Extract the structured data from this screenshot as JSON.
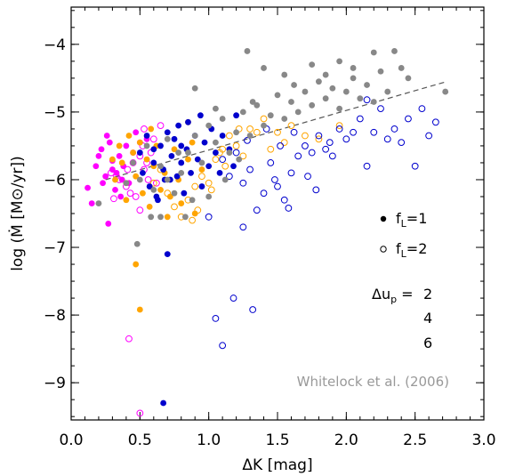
{
  "chart_data": {
    "type": "scatter",
    "xlabel": "ΔK  [mag]",
    "ylabel": "log (Ṁ [M⊙/yr])",
    "xlim": [
      0.0,
      3.0
    ],
    "ylim": [
      -9.55,
      -3.45
    ],
    "x_ticks": [
      0.0,
      0.5,
      1.0,
      1.5,
      2.0,
      2.5,
      3.0
    ],
    "x_tick_labels": [
      "0.0",
      "0.5",
      "1.0",
      "1.5",
      "2.0",
      "2.5",
      "3.0"
    ],
    "y_ticks": [
      -9,
      -8,
      -7,
      -6,
      -5,
      -4
    ],
    "y_tick_labels": [
      "−9",
      "−8",
      "−7",
      "−6",
      "−5",
      "−4"
    ],
    "credit": "Whitelock et al. (2006)",
    "legend": {
      "filled_label": "f",
      "filled_sub": "L",
      "filled_value": "=1",
      "open_label": "f",
      "open_sub": "L",
      "open_value": "=2",
      "du_label": "Δu",
      "du_sub": "p",
      "du_eq": " =",
      "du_values": [
        "2",
        "4",
        "6"
      ]
    },
    "colors": {
      "pink": "#ff00ff",
      "orange": "#ffa500",
      "blue": "#0000cd",
      "gray": "#888888",
      "fit": "#555555"
    },
    "fit_line": {
      "x": [
        0.25,
        2.73
      ],
      "y": [
        -6.0,
        -4.55
      ]
    },
    "series": [
      {
        "color": "pink",
        "filled": true,
        "points": [
          [
            0.12,
            -6.12
          ],
          [
            0.15,
            -6.35
          ],
          [
            0.18,
            -5.8
          ],
          [
            0.2,
            -5.65
          ],
          [
            0.22,
            -5.55
          ],
          [
            0.23,
            -6.05
          ],
          [
            0.25,
            -5.95
          ],
          [
            0.27,
            -6.65
          ],
          [
            0.28,
            -5.45
          ],
          [
            0.3,
            -5.85
          ],
          [
            0.3,
            -5.72
          ],
          [
            0.32,
            -6.15
          ],
          [
            0.33,
            -5.9
          ],
          [
            0.35,
            -5.65
          ],
          [
            0.36,
            -6.25
          ],
          [
            0.38,
            -5.8
          ],
          [
            0.4,
            -5.5
          ],
          [
            0.42,
            -6.05
          ],
          [
            0.45,
            -5.6
          ],
          [
            0.47,
            -5.3
          ],
          [
            0.5,
            -5.45
          ],
          [
            0.55,
            -5.4
          ],
          [
            0.37,
            -6.0
          ],
          [
            0.26,
            -5.35
          ]
        ]
      },
      {
        "color": "pink",
        "filled": false,
        "points": [
          [
            0.29,
            -5.9
          ],
          [
            0.31,
            -6.28
          ],
          [
            0.33,
            -5.95
          ],
          [
            0.35,
            -6.0
          ],
          [
            0.4,
            -6.1
          ],
          [
            0.41,
            -5.85
          ],
          [
            0.43,
            -6.2
          ],
          [
            0.45,
            -5.75
          ],
          [
            0.47,
            -6.25
          ],
          [
            0.5,
            -5.65
          ],
          [
            0.52,
            -5.5
          ],
          [
            0.53,
            -5.85
          ],
          [
            0.55,
            -5.75
          ],
          [
            0.56,
            -6.0
          ],
          [
            0.58,
            -5.6
          ],
          [
            0.6,
            -5.4
          ],
          [
            0.62,
            -6.05
          ],
          [
            0.65,
            -5.2
          ],
          [
            0.5,
            -6.45
          ],
          [
            0.42,
            -8.35
          ],
          [
            0.5,
            -9.45
          ],
          [
            0.53,
            -5.25
          ]
        ]
      },
      {
        "color": "orange",
        "filled": true,
        "points": [
          [
            0.3,
            -5.7
          ],
          [
            0.32,
            -6.0
          ],
          [
            0.35,
            -5.5
          ],
          [
            0.37,
            -5.75
          ],
          [
            0.4,
            -6.05
          ],
          [
            0.42,
            -5.35
          ],
          [
            0.45,
            -5.6
          ],
          [
            0.47,
            -5.95
          ],
          [
            0.5,
            -5.45
          ],
          [
            0.52,
            -6.2
          ],
          [
            0.55,
            -5.7
          ],
          [
            0.57,
            -6.4
          ],
          [
            0.6,
            -5.8
          ],
          [
            0.62,
            -5.5
          ],
          [
            0.65,
            -6.15
          ],
          [
            0.68,
            -5.9
          ],
          [
            0.7,
            -6.55
          ],
          [
            0.72,
            -6.25
          ],
          [
            0.75,
            -5.55
          ],
          [
            0.78,
            -6.0
          ],
          [
            0.8,
            -6.35
          ],
          [
            0.85,
            -5.7
          ],
          [
            0.9,
            -6.5
          ],
          [
            0.47,
            -7.25
          ],
          [
            0.5,
            -7.92
          ],
          [
            0.85,
            -5.15
          ],
          [
            0.95,
            -5.85
          ],
          [
            0.58,
            -5.25
          ],
          [
            0.4,
            -6.3
          ],
          [
            0.88,
            -5.45
          ]
        ]
      },
      {
        "color": "orange",
        "filled": false,
        "points": [
          [
            0.6,
            -6.05
          ],
          [
            0.65,
            -5.85
          ],
          [
            0.7,
            -6.2
          ],
          [
            0.75,
            -6.4
          ],
          [
            0.8,
            -6.55
          ],
          [
            0.85,
            -6.3
          ],
          [
            0.9,
            -6.1
          ],
          [
            0.95,
            -5.95
          ],
          [
            1.0,
            -6.05
          ],
          [
            1.05,
            -5.7
          ],
          [
            1.1,
            -5.55
          ],
          [
            1.15,
            -5.35
          ],
          [
            1.2,
            -5.5
          ],
          [
            1.25,
            -5.65
          ],
          [
            1.3,
            -5.25
          ],
          [
            1.35,
            -5.3
          ],
          [
            1.4,
            -5.1
          ],
          [
            1.5,
            -5.3
          ],
          [
            1.55,
            -5.45
          ],
          [
            1.6,
            -5.2
          ],
          [
            1.7,
            -5.35
          ],
          [
            1.8,
            -5.4
          ],
          [
            0.88,
            -6.6
          ],
          [
            0.92,
            -6.45
          ],
          [
            1.02,
            -6.15
          ],
          [
            1.12,
            -5.8
          ],
          [
            1.22,
            -5.25
          ],
          [
            1.45,
            -5.55
          ],
          [
            1.95,
            -5.2
          ],
          [
            1.08,
            -5.6
          ]
        ]
      },
      {
        "color": "blue",
        "filled": true,
        "points": [
          [
            0.5,
            -5.6
          ],
          [
            0.52,
            -5.9
          ],
          [
            0.55,
            -5.35
          ],
          [
            0.57,
            -6.1
          ],
          [
            0.6,
            -5.75
          ],
          [
            0.62,
            -6.25
          ],
          [
            0.65,
            -5.5
          ],
          [
            0.67,
            -5.85
          ],
          [
            0.7,
            -5.3
          ],
          [
            0.72,
            -6.0
          ],
          [
            0.73,
            -5.65
          ],
          [
            0.75,
            -5.4
          ],
          [
            0.77,
            -5.95
          ],
          [
            0.78,
            -5.2
          ],
          [
            0.8,
            -5.75
          ],
          [
            0.82,
            -6.2
          ],
          [
            0.84,
            -5.55
          ],
          [
            0.85,
            -5.15
          ],
          [
            0.87,
            -5.9
          ],
          [
            0.9,
            -5.35
          ],
          [
            0.92,
            -5.7
          ],
          [
            0.95,
            -6.1
          ],
          [
            0.97,
            -5.45
          ],
          [
            1.0,
            -5.8
          ],
          [
            1.02,
            -5.25
          ],
          [
            1.05,
            -5.6
          ],
          [
            1.08,
            -5.9
          ],
          [
            1.1,
            -5.35
          ],
          [
            1.15,
            -5.55
          ],
          [
            1.18,
            -5.8
          ],
          [
            0.7,
            -7.1
          ],
          [
            0.67,
            -9.3
          ],
          [
            0.63,
            -6.3
          ],
          [
            0.68,
            -6.0
          ],
          [
            0.94,
            -5.05
          ],
          [
            1.2,
            -5.05
          ],
          [
            0.6,
            -5.55
          ],
          [
            0.8,
            -5.5
          ]
        ]
      },
      {
        "color": "blue",
        "filled": false,
        "points": [
          [
            1.1,
            -5.7
          ],
          [
            1.15,
            -5.95
          ],
          [
            1.2,
            -5.6
          ],
          [
            1.25,
            -6.05
          ],
          [
            1.3,
            -5.85
          ],
          [
            1.35,
            -6.45
          ],
          [
            1.4,
            -6.2
          ],
          [
            1.45,
            -5.75
          ],
          [
            1.5,
            -6.1
          ],
          [
            1.52,
            -5.5
          ],
          [
            1.55,
            -6.3
          ],
          [
            1.6,
            -5.9
          ],
          [
            1.62,
            -5.3
          ],
          [
            1.65,
            -5.65
          ],
          [
            1.7,
            -5.5
          ],
          [
            1.72,
            -5.95
          ],
          [
            1.75,
            -5.6
          ],
          [
            1.78,
            -6.15
          ],
          [
            1.8,
            -5.35
          ],
          [
            1.85,
            -5.55
          ],
          [
            1.88,
            -5.45
          ],
          [
            1.9,
            -5.65
          ],
          [
            1.95,
            -5.25
          ],
          [
            2.0,
            -5.4
          ],
          [
            2.05,
            -5.3
          ],
          [
            2.1,
            -5.1
          ],
          [
            2.15,
            -5.8
          ],
          [
            2.2,
            -5.3
          ],
          [
            2.25,
            -4.95
          ],
          [
            2.3,
            -5.4
          ],
          [
            2.35,
            -5.25
          ],
          [
            2.4,
            -5.45
          ],
          [
            2.45,
            -5.1
          ],
          [
            2.5,
            -5.8
          ],
          [
            2.55,
            -4.95
          ],
          [
            2.65,
            -5.15
          ],
          [
            2.6,
            -5.35
          ],
          [
            1.05,
            -8.05
          ],
          [
            1.1,
            -8.45
          ],
          [
            1.18,
            -7.75
          ],
          [
            1.32,
            -7.92
          ],
          [
            1.0,
            -6.55
          ],
          [
            1.25,
            -6.7
          ],
          [
            1.58,
            -6.42
          ],
          [
            1.48,
            -6.0
          ],
          [
            1.28,
            -5.42
          ],
          [
            1.42,
            -5.25
          ],
          [
            2.15,
            -4.82
          ]
        ]
      },
      {
        "color": "gray",
        "filled": true,
        "points": [
          [
            0.2,
            -6.35
          ],
          [
            0.4,
            -6.05
          ],
          [
            0.45,
            -5.75
          ],
          [
            0.5,
            -6.0
          ],
          [
            0.55,
            -5.5
          ],
          [
            0.6,
            -6.15
          ],
          [
            0.65,
            -5.8
          ],
          [
            0.7,
            -5.4
          ],
          [
            0.75,
            -6.2
          ],
          [
            0.8,
            -5.9
          ],
          [
            0.85,
            -5.6
          ],
          [
            0.88,
            -6.3
          ],
          [
            0.9,
            -5.35
          ],
          [
            0.95,
            -5.75
          ],
          [
            1.0,
            -5.2
          ],
          [
            1.05,
            -5.45
          ],
          [
            1.1,
            -5.1
          ],
          [
            1.15,
            -5.6
          ],
          [
            1.2,
            -5.3
          ],
          [
            1.25,
            -5.0
          ],
          [
            1.3,
            -5.35
          ],
          [
            1.35,
            -4.9
          ],
          [
            1.4,
            -5.2
          ],
          [
            1.45,
            -5.05
          ],
          [
            1.5,
            -4.75
          ],
          [
            1.55,
            -5.1
          ],
          [
            1.6,
            -4.85
          ],
          [
            1.65,
            -5.0
          ],
          [
            1.7,
            -4.7
          ],
          [
            1.75,
            -4.9
          ],
          [
            1.8,
            -4.55
          ],
          [
            1.85,
            -4.8
          ],
          [
            1.9,
            -4.65
          ],
          [
            1.95,
            -4.95
          ],
          [
            2.0,
            -4.7
          ],
          [
            2.05,
            -4.5
          ],
          [
            2.1,
            -4.8
          ],
          [
            2.15,
            -4.6
          ],
          [
            2.2,
            -4.85
          ],
          [
            2.25,
            -4.4
          ],
          [
            2.3,
            -4.7
          ],
          [
            2.35,
            -4.1
          ],
          [
            2.4,
            -4.35
          ],
          [
            2.45,
            -4.5
          ],
          [
            2.72,
            -4.7
          ],
          [
            0.9,
            -4.65
          ],
          [
            1.28,
            -4.1
          ],
          [
            1.4,
            -4.35
          ],
          [
            1.75,
            -4.3
          ],
          [
            1.95,
            -4.25
          ],
          [
            2.05,
            -4.35
          ],
          [
            2.2,
            -4.12
          ],
          [
            1.05,
            -4.95
          ],
          [
            1.55,
            -4.45
          ],
          [
            0.48,
            -6.95
          ],
          [
            0.65,
            -6.55
          ],
          [
            0.7,
            -6.0
          ],
          [
            0.83,
            -6.55
          ],
          [
            1.0,
            -6.25
          ],
          [
            1.12,
            -6.0
          ],
          [
            1.22,
            -5.7
          ],
          [
            0.58,
            -6.55
          ],
          [
            0.78,
            -5.6
          ],
          [
            1.32,
            -4.85
          ],
          [
            1.62,
            -4.6
          ],
          [
            1.85,
            -4.45
          ]
        ]
      }
    ]
  }
}
